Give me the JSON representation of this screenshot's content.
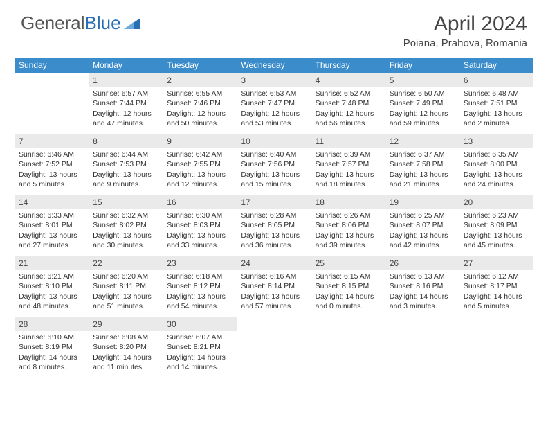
{
  "logo": {
    "text1": "General",
    "text2": "Blue"
  },
  "title": "April 2024",
  "location": "Poiana, Prahova, Romania",
  "weekdays": [
    "Sunday",
    "Monday",
    "Tuesday",
    "Wednesday",
    "Thursday",
    "Friday",
    "Saturday"
  ],
  "colors": {
    "header_bg": "#3b8ccb",
    "accent_border": "#2a6fb5",
    "daynum_bg": "#eaeaea"
  },
  "grid": [
    [
      {
        "n": "",
        "sr": "",
        "ss": "",
        "dl": ""
      },
      {
        "n": "1",
        "sr": "Sunrise: 6:57 AM",
        "ss": "Sunset: 7:44 PM",
        "dl": "Daylight: 12 hours and 47 minutes."
      },
      {
        "n": "2",
        "sr": "Sunrise: 6:55 AM",
        "ss": "Sunset: 7:46 PM",
        "dl": "Daylight: 12 hours and 50 minutes."
      },
      {
        "n": "3",
        "sr": "Sunrise: 6:53 AM",
        "ss": "Sunset: 7:47 PM",
        "dl": "Daylight: 12 hours and 53 minutes."
      },
      {
        "n": "4",
        "sr": "Sunrise: 6:52 AM",
        "ss": "Sunset: 7:48 PM",
        "dl": "Daylight: 12 hours and 56 minutes."
      },
      {
        "n": "5",
        "sr": "Sunrise: 6:50 AM",
        "ss": "Sunset: 7:49 PM",
        "dl": "Daylight: 12 hours and 59 minutes."
      },
      {
        "n": "6",
        "sr": "Sunrise: 6:48 AM",
        "ss": "Sunset: 7:51 PM",
        "dl": "Daylight: 13 hours and 2 minutes."
      }
    ],
    [
      {
        "n": "7",
        "sr": "Sunrise: 6:46 AM",
        "ss": "Sunset: 7:52 PM",
        "dl": "Daylight: 13 hours and 5 minutes."
      },
      {
        "n": "8",
        "sr": "Sunrise: 6:44 AM",
        "ss": "Sunset: 7:53 PM",
        "dl": "Daylight: 13 hours and 9 minutes."
      },
      {
        "n": "9",
        "sr": "Sunrise: 6:42 AM",
        "ss": "Sunset: 7:55 PM",
        "dl": "Daylight: 13 hours and 12 minutes."
      },
      {
        "n": "10",
        "sr": "Sunrise: 6:40 AM",
        "ss": "Sunset: 7:56 PM",
        "dl": "Daylight: 13 hours and 15 minutes."
      },
      {
        "n": "11",
        "sr": "Sunrise: 6:39 AM",
        "ss": "Sunset: 7:57 PM",
        "dl": "Daylight: 13 hours and 18 minutes."
      },
      {
        "n": "12",
        "sr": "Sunrise: 6:37 AM",
        "ss": "Sunset: 7:58 PM",
        "dl": "Daylight: 13 hours and 21 minutes."
      },
      {
        "n": "13",
        "sr": "Sunrise: 6:35 AM",
        "ss": "Sunset: 8:00 PM",
        "dl": "Daylight: 13 hours and 24 minutes."
      }
    ],
    [
      {
        "n": "14",
        "sr": "Sunrise: 6:33 AM",
        "ss": "Sunset: 8:01 PM",
        "dl": "Daylight: 13 hours and 27 minutes."
      },
      {
        "n": "15",
        "sr": "Sunrise: 6:32 AM",
        "ss": "Sunset: 8:02 PM",
        "dl": "Daylight: 13 hours and 30 minutes."
      },
      {
        "n": "16",
        "sr": "Sunrise: 6:30 AM",
        "ss": "Sunset: 8:03 PM",
        "dl": "Daylight: 13 hours and 33 minutes."
      },
      {
        "n": "17",
        "sr": "Sunrise: 6:28 AM",
        "ss": "Sunset: 8:05 PM",
        "dl": "Daylight: 13 hours and 36 minutes."
      },
      {
        "n": "18",
        "sr": "Sunrise: 6:26 AM",
        "ss": "Sunset: 8:06 PM",
        "dl": "Daylight: 13 hours and 39 minutes."
      },
      {
        "n": "19",
        "sr": "Sunrise: 6:25 AM",
        "ss": "Sunset: 8:07 PM",
        "dl": "Daylight: 13 hours and 42 minutes."
      },
      {
        "n": "20",
        "sr": "Sunrise: 6:23 AM",
        "ss": "Sunset: 8:09 PM",
        "dl": "Daylight: 13 hours and 45 minutes."
      }
    ],
    [
      {
        "n": "21",
        "sr": "Sunrise: 6:21 AM",
        "ss": "Sunset: 8:10 PM",
        "dl": "Daylight: 13 hours and 48 minutes."
      },
      {
        "n": "22",
        "sr": "Sunrise: 6:20 AM",
        "ss": "Sunset: 8:11 PM",
        "dl": "Daylight: 13 hours and 51 minutes."
      },
      {
        "n": "23",
        "sr": "Sunrise: 6:18 AM",
        "ss": "Sunset: 8:12 PM",
        "dl": "Daylight: 13 hours and 54 minutes."
      },
      {
        "n": "24",
        "sr": "Sunrise: 6:16 AM",
        "ss": "Sunset: 8:14 PM",
        "dl": "Daylight: 13 hours and 57 minutes."
      },
      {
        "n": "25",
        "sr": "Sunrise: 6:15 AM",
        "ss": "Sunset: 8:15 PM",
        "dl": "Daylight: 14 hours and 0 minutes."
      },
      {
        "n": "26",
        "sr": "Sunrise: 6:13 AM",
        "ss": "Sunset: 8:16 PM",
        "dl": "Daylight: 14 hours and 3 minutes."
      },
      {
        "n": "27",
        "sr": "Sunrise: 6:12 AM",
        "ss": "Sunset: 8:17 PM",
        "dl": "Daylight: 14 hours and 5 minutes."
      }
    ],
    [
      {
        "n": "28",
        "sr": "Sunrise: 6:10 AM",
        "ss": "Sunset: 8:19 PM",
        "dl": "Daylight: 14 hours and 8 minutes."
      },
      {
        "n": "29",
        "sr": "Sunrise: 6:08 AM",
        "ss": "Sunset: 8:20 PM",
        "dl": "Daylight: 14 hours and 11 minutes."
      },
      {
        "n": "30",
        "sr": "Sunrise: 6:07 AM",
        "ss": "Sunset: 8:21 PM",
        "dl": "Daylight: 14 hours and 14 minutes."
      },
      {
        "n": "",
        "sr": "",
        "ss": "",
        "dl": ""
      },
      {
        "n": "",
        "sr": "",
        "ss": "",
        "dl": ""
      },
      {
        "n": "",
        "sr": "",
        "ss": "",
        "dl": ""
      },
      {
        "n": "",
        "sr": "",
        "ss": "",
        "dl": ""
      }
    ]
  ]
}
